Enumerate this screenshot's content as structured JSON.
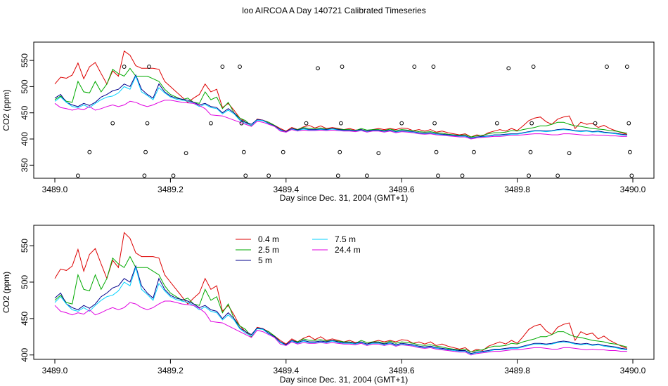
{
  "title": "loo AIRCOA A  Day 140721  Calibrated Timeseries",
  "colors": {
    "0.4 m": "#dd0000",
    "2.5 m": "#00aa00",
    "5 m": "#00008b",
    "7.5 m": "#00d2ff",
    "24.4 m": "#e000e0"
  },
  "chart_data": [
    {
      "type": "line",
      "title": "",
      "xlabel": "Day since Dec. 31, 2004 (GMT+1)",
      "ylabel": "CO2 (ppm)",
      "xlim": [
        3489.0,
        3490.0
      ],
      "ylim": [
        325,
        585
      ],
      "xticks": [
        "3489.0",
        "3489.2",
        "3489.4",
        "3489.6",
        "3489.8",
        "3490.0"
      ],
      "yticks": [
        "350",
        "400",
        "450",
        "500",
        "550"
      ],
      "legend": "none",
      "grid": false,
      "markers": {
        "style": "open-circle",
        "x": [
          3489.04,
          3489.06,
          3489.1,
          3489.12,
          3489.155,
          3489.157,
          3489.16,
          3489.163,
          3489.205,
          3489.227,
          3489.27,
          3489.29,
          3489.32,
          3489.323,
          3489.327,
          3489.33,
          3489.37,
          3489.395,
          3489.435,
          3489.455,
          3489.49,
          3489.493,
          3489.495,
          3489.497,
          3489.54,
          3489.56,
          3489.6,
          3489.622,
          3489.655,
          3489.657,
          3489.66,
          3489.663,
          3489.705,
          3489.725,
          3489.765,
          3489.785,
          3489.82,
          3489.823,
          3489.825,
          3489.828,
          3489.87,
          3489.89,
          3489.935,
          3489.955,
          3489.99,
          3489.993,
          3489.995,
          3489.998
        ],
        "y": [
          330,
          375,
          430,
          538,
          330,
          375,
          430,
          538,
          330,
          373,
          430,
          538,
          538,
          430,
          375,
          330,
          330,
          375,
          430,
          535,
          330,
          375,
          430,
          538,
          330,
          373,
          430,
          538,
          538,
          430,
          375,
          330,
          330,
          375,
          430,
          535,
          330,
          375,
          430,
          538,
          330,
          373,
          430,
          538,
          538,
          430,
          375,
          330
        ]
      },
      "x": [
        3489.0,
        3489.01,
        3489.02,
        3489.03,
        3489.04,
        3489.05,
        3489.06,
        3489.07,
        3489.08,
        3489.09,
        3489.1,
        3489.11,
        3489.12,
        3489.13,
        3489.14,
        3489.15,
        3489.16,
        3489.17,
        3489.18,
        3489.19,
        3489.2,
        3489.21,
        3489.22,
        3489.23,
        3489.24,
        3489.25,
        3489.26,
        3489.27,
        3489.28,
        3489.29,
        3489.3,
        3489.31,
        3489.32,
        3489.33,
        3489.34,
        3489.35,
        3489.36,
        3489.37,
        3489.38,
        3489.39,
        3489.4,
        3489.41,
        3489.42,
        3489.43,
        3489.44,
        3489.45,
        3489.46,
        3489.47,
        3489.48,
        3489.49,
        3489.5,
        3489.51,
        3489.52,
        3489.53,
        3489.54,
        3489.55,
        3489.56,
        3489.57,
        3489.58,
        3489.59,
        3489.6,
        3489.61,
        3489.62,
        3489.63,
        3489.64,
        3489.65,
        3489.66,
        3489.67,
        3489.68,
        3489.69,
        3489.7,
        3489.71,
        3489.72,
        3489.73,
        3489.74,
        3489.75,
        3489.76,
        3489.77,
        3489.78,
        3489.79,
        3489.8,
        3489.81,
        3489.82,
        3489.83,
        3489.84,
        3489.85,
        3489.86,
        3489.87,
        3489.88,
        3489.89,
        3489.9,
        3489.91,
        3489.92,
        3489.93,
        3489.94,
        3489.95,
        3489.96,
        3489.97,
        3489.98,
        3489.99
      ],
      "series": [
        {
          "name": "0.4 m",
          "values": [
            505,
            518,
            516,
            522,
            545,
            515,
            538,
            546,
            525,
            505,
            530,
            520,
            568,
            560,
            540,
            535,
            535,
            535,
            533,
            510,
            500,
            490,
            480,
            470,
            478,
            485,
            505,
            490,
            495,
            460,
            468,
            455,
            440,
            432,
            425,
            438,
            436,
            432,
            426,
            420,
            415,
            422,
            418,
            423,
            426,
            421,
            425,
            420,
            422,
            420,
            418,
            420,
            417,
            418,
            415,
            418,
            420,
            418,
            420,
            418,
            421,
            420,
            416,
            418,
            415,
            418,
            413,
            415,
            412,
            410,
            408,
            410,
            404,
            408,
            406,
            412,
            415,
            418,
            415,
            420,
            416,
            425,
            435,
            440,
            442,
            433,
            428,
            438,
            442,
            444,
            420,
            432,
            428,
            430,
            422,
            426,
            420,
            416,
            412,
            409
          ]
        },
        {
          "name": "2.5 m",
          "values": [
            475,
            482,
            472,
            470,
            510,
            490,
            488,
            510,
            490,
            505,
            533,
            525,
            520,
            535,
            520,
            520,
            520,
            515,
            510,
            495,
            485,
            480,
            475,
            478,
            470,
            468,
            490,
            475,
            480,
            458,
            470,
            450,
            440,
            435,
            425,
            437,
            435,
            432,
            426,
            418,
            414,
            420,
            418,
            422,
            420,
            420,
            421,
            419,
            420,
            419,
            418,
            418,
            416,
            420,
            417,
            418,
            418,
            416,
            419,
            416,
            418,
            417,
            416,
            414,
            413,
            414,
            412,
            411,
            409,
            408,
            407,
            408,
            404,
            406,
            407,
            410,
            412,
            412,
            413,
            416,
            415,
            418,
            420,
            422,
            425,
            425,
            428,
            432,
            432,
            428,
            425,
            424,
            422,
            420,
            419,
            418,
            416,
            415,
            413,
            411
          ]
        },
        {
          "name": "5 m",
          "values": [
            478,
            485,
            470,
            465,
            462,
            468,
            464,
            470,
            480,
            485,
            492,
            495,
            505,
            500,
            522,
            495,
            485,
            478,
            505,
            490,
            482,
            478,
            476,
            474,
            470,
            465,
            468,
            462,
            460,
            450,
            458,
            450,
            437,
            432,
            428,
            437,
            436,
            430,
            425,
            418,
            414,
            420,
            417,
            420,
            418,
            418,
            419,
            418,
            420,
            418,
            417,
            417,
            416,
            418,
            415,
            417,
            417,
            415,
            417,
            414,
            416,
            415,
            414,
            412,
            411,
            412,
            410,
            409,
            408,
            407,
            406,
            406,
            402,
            404,
            405,
            406,
            408,
            408,
            409,
            410,
            410,
            412,
            414,
            416,
            416,
            415,
            416,
            418,
            419,
            418,
            416,
            415,
            416,
            414,
            415,
            413,
            412,
            411,
            409,
            408
          ]
        },
        {
          "name": "7.5 m",
          "values": [
            472,
            480,
            470,
            462,
            460,
            465,
            460,
            468,
            475,
            480,
            482,
            488,
            500,
            495,
            520,
            490,
            483,
            475,
            498,
            488,
            480,
            476,
            474,
            472,
            468,
            462,
            466,
            460,
            458,
            448,
            455,
            448,
            436,
            430,
            426,
            436,
            435,
            429,
            424,
            417,
            413,
            419,
            416,
            419,
            417,
            417,
            418,
            417,
            419,
            417,
            416,
            416,
            415,
            417,
            414,
            416,
            416,
            414,
            416,
            413,
            415,
            414,
            413,
            411,
            410,
            411,
            409,
            408,
            407,
            406,
            405,
            405,
            401,
            403,
            404,
            405,
            407,
            407,
            408,
            409,
            409,
            411,
            413,
            415,
            415,
            414,
            415,
            417,
            418,
            417,
            415,
            414,
            415,
            413,
            414,
            412,
            411,
            410,
            408,
            407
          ]
        },
        {
          "name": "24.4 m",
          "values": [
            468,
            460,
            458,
            455,
            458,
            456,
            462,
            455,
            458,
            462,
            465,
            462,
            465,
            472,
            470,
            465,
            462,
            465,
            470,
            474,
            474,
            472,
            470,
            469,
            468,
            464,
            458,
            446,
            445,
            444,
            440,
            436,
            432,
            428,
            424,
            434,
            432,
            428,
            424,
            415,
            413,
            418,
            415,
            417,
            416,
            416,
            417,
            416,
            417,
            416,
            415,
            415,
            414,
            416,
            413,
            415,
            415,
            413,
            415,
            412,
            414,
            413,
            412,
            410,
            409,
            410,
            408,
            407,
            406,
            405,
            404,
            404,
            400,
            402,
            403,
            404,
            405,
            405,
            406,
            407,
            407,
            408,
            409,
            410,
            410,
            409,
            408,
            408,
            410,
            410,
            409,
            408,
            407,
            408,
            407,
            407,
            406,
            406,
            405,
            405
          ]
        }
      ]
    },
    {
      "type": "line",
      "title": "",
      "xlabel": "Day since Dec. 31, 2004 (GMT+1)",
      "ylabel": "CO2 (ppm)",
      "xlim": [
        3489.0,
        3490.0
      ],
      "ylim": [
        394,
        578
      ],
      "xticks": [
        "3489.0",
        "3489.2",
        "3489.4",
        "3489.6",
        "3489.8",
        "3490.0"
      ],
      "yticks": [
        "400",
        "450",
        "500",
        "550"
      ],
      "legend": "top-left",
      "legend_entries": [
        "0.4 m",
        "2.5 m",
        "5 m",
        "7.5 m",
        "24.4 m"
      ],
      "grid": false,
      "same_series_as": "chart_data.0"
    }
  ]
}
